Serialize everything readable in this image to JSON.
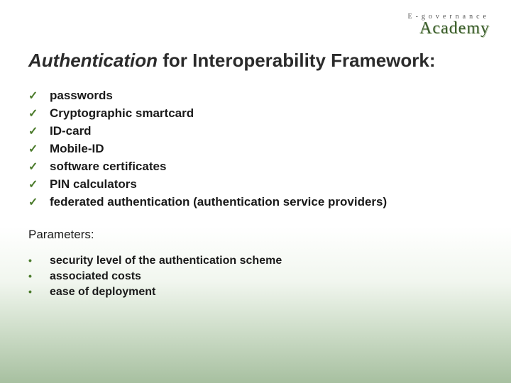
{
  "logo": {
    "subtitle": "E-governance",
    "title": "Academy"
  },
  "title": {
    "emphasis": "Authentication",
    "rest": " for Interoperability Framework:",
    "emphasis_italic": true,
    "color": "#2b2b2b",
    "fontsize": 26
  },
  "checklist": {
    "marker": "✓",
    "marker_color": "#4a7a2a",
    "item_fontsize": 17,
    "item_fontweight": "bold",
    "items": [
      "passwords",
      "Cryptographic smartcard",
      "ID-card",
      "Mobile-ID",
      "software certificates",
      "PIN calculators",
      "federated authentication (authentication service providers)"
    ]
  },
  "params": {
    "heading": "Parameters:",
    "heading_fontsize": 17,
    "marker": "•",
    "marker_color": "#4a7a2a",
    "item_fontsize": 16,
    "item_fontweight": "bold",
    "items": [
      "security level of the authentication scheme",
      "associated costs",
      "ease of deployment"
    ]
  },
  "styling": {
    "background_top": "#ffffff",
    "background_gradient_colors": [
      "rgba(255,255,255,0)",
      "rgba(200,220,190,0.25)",
      "rgba(160,190,150,0.5)",
      "rgba(130,165,120,0.7)"
    ],
    "text_color": "#1a1a1a",
    "logo_color": "#3a5c2c"
  }
}
